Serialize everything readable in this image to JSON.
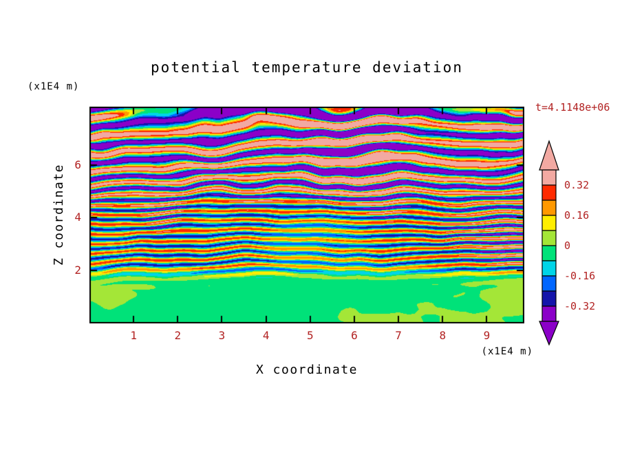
{
  "title": "potential temperature deviation",
  "time_label": "t=4.1148e+06",
  "axis": {
    "x_label": "X coordinate",
    "x_unit": "(x1E4 m)",
    "z_label": "Z coordinate",
    "z_unit": "(x1E4 m)"
  },
  "colors": {
    "label_text": "#000000",
    "number_text": "#b22222",
    "frame": "#000000",
    "background": "#ffffff"
  },
  "chart_data": {
    "type": "heatmap",
    "title": "potential temperature deviation",
    "xlabel": "X coordinate",
    "ylabel": "Z coordinate",
    "x_unit": "(x1E4 m)",
    "z_unit": "(x1E4 m)",
    "time_annotation": "t=4.1148e+06",
    "x_range": [
      0,
      9.85
    ],
    "z_range": [
      0,
      8.2
    ],
    "x_ticks": [
      1,
      2,
      3,
      4,
      5,
      6,
      7,
      8,
      9
    ],
    "z_ticks": [
      2,
      4,
      6
    ],
    "colorbar_labels": [
      "0.32",
      "0.16",
      "0",
      "-0.16",
      "-0.32"
    ],
    "contour_levels": [
      -0.32,
      -0.24,
      -0.16,
      -0.08,
      0,
      0.08,
      0.16,
      0.24,
      0.32
    ],
    "contour_colors": [
      "#8b00c8",
      "#1414aa",
      "#0066ff",
      "#00d5e8",
      "#00e279",
      "#a4e637",
      "#ffee00",
      "#ff9900",
      "#ff2a00",
      "#f2a9a2"
    ],
    "description": "Stratified turbulence: weak deviations (green shades) below z=2x1E4 m; thin wavy alternating positive/negative layers (red/blue with yellow/cyan edges) for 2<z<5; thick saturated layers (salmon >0.32, purple <-0.32) above z=5; dark negative band at the top boundary.",
    "field": {
      "seed": 7,
      "kz_mid": 2.9,
      "kz_top": 1.35,
      "kz_transition_z": 5.2,
      "kz_transition_width": 0.35,
      "amp_mid": 0.3,
      "amp_top": 0.55,
      "bottom_top_z": 1.9,
      "bottom_blend_width": 0.13,
      "mid_top_z": 5.0,
      "mid_blend_width": 0.45,
      "phase_wobble1": 6.0,
      "phase_wobble2": 2.0,
      "amp_mod": 0.5,
      "top_dark_bias_z": 7.85
    }
  }
}
